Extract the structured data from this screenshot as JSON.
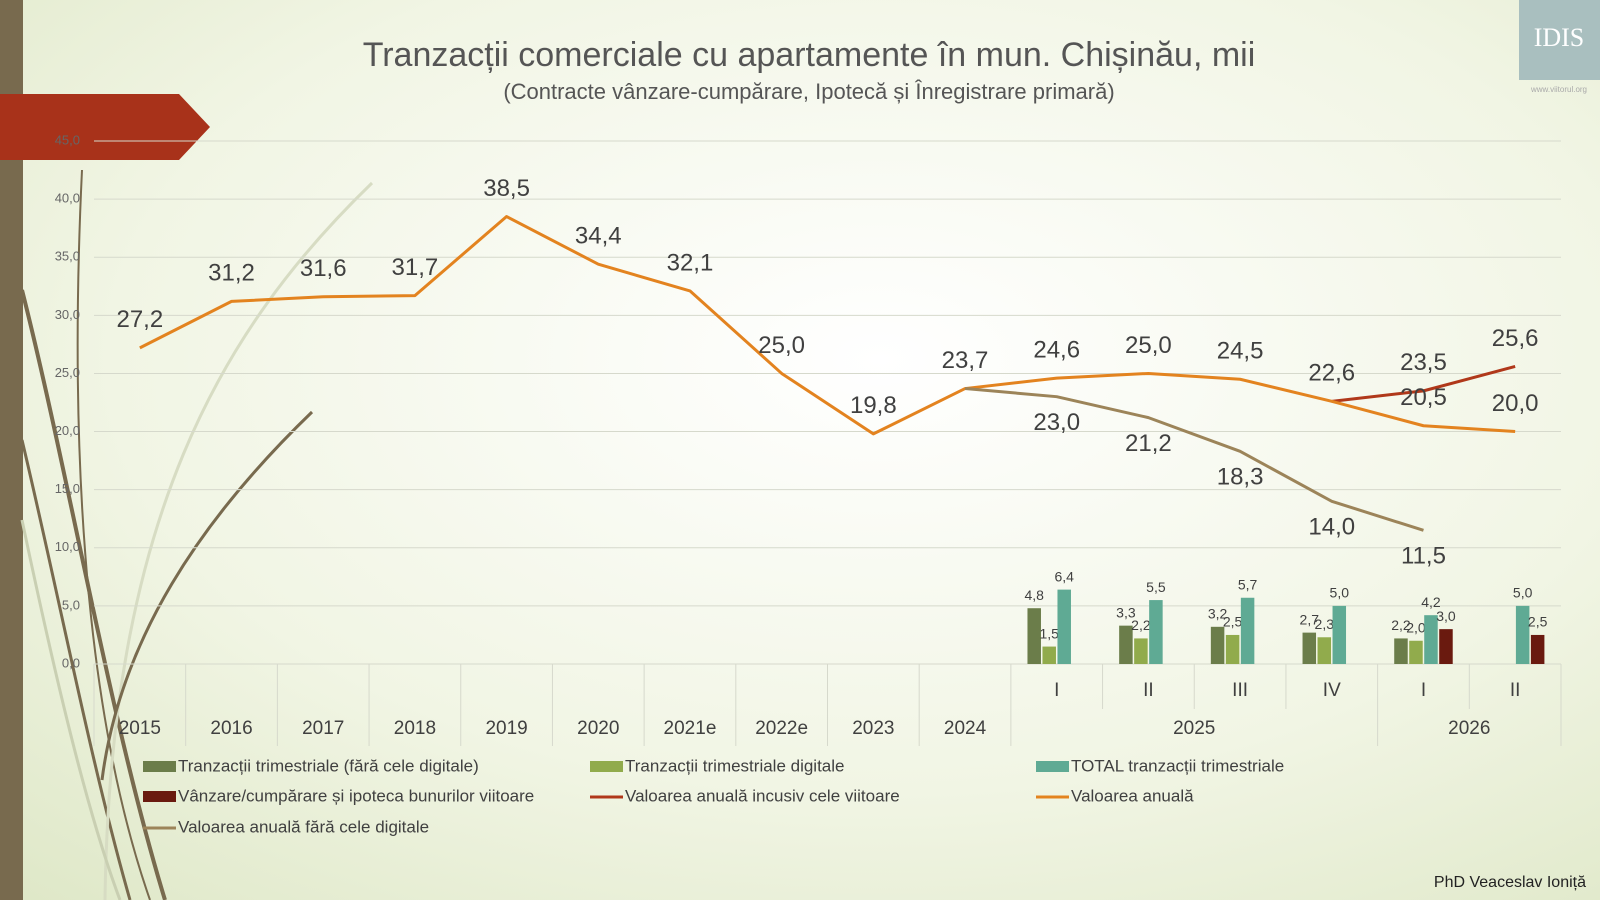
{
  "chart_data": {
    "type": "combo",
    "title": "Tranzacții comerciale cu apartamente în mun. Chișinău, mii",
    "subtitle": "(Contracte vânzare-cumpărare, Ipotecă și Înregistrare primară)",
    "categories": [
      "2015",
      "2016",
      "2017",
      "2018",
      "2019",
      "2020",
      "2021e",
      "2022e",
      "2023",
      "2024",
      "I",
      "II",
      "III",
      "IV",
      "I",
      "II"
    ],
    "x_groups": [
      {
        "label": "2025",
        "count": 4
      },
      {
        "label": "2026",
        "count": 2
      }
    ],
    "ylim": [
      0,
      45
    ],
    "yticks": [
      {
        "value": 0,
        "label": "0,0"
      },
      {
        "value": 5,
        "label": "5,0"
      },
      {
        "value": 10,
        "label": "10,0"
      },
      {
        "value": 15,
        "label": "15,0"
      },
      {
        "value": 20,
        "label": "20,0"
      },
      {
        "value": 25,
        "label": "25,0"
      },
      {
        "value": 30,
        "label": "30,0"
      },
      {
        "value": 35,
        "label": "35,0"
      },
      {
        "value": 40,
        "label": "40,0"
      },
      {
        "value": 45,
        "label": "45,0"
      }
    ],
    "grid": true,
    "series": [
      {
        "name": "Tranzacții trimestriale (fără cele digitale)",
        "type": "bar",
        "color": "#6b7d4a",
        "values": [
          null,
          null,
          null,
          null,
          null,
          null,
          null,
          null,
          null,
          null,
          4.8,
          3.3,
          3.2,
          2.7,
          2.2,
          null
        ],
        "value_labels": [
          null,
          null,
          null,
          null,
          null,
          null,
          null,
          null,
          null,
          null,
          "4,8",
          "3,3",
          "3,2",
          "2,7",
          "2,2",
          null
        ]
      },
      {
        "name": "Tranzacții trimestriale digitale",
        "type": "bar",
        "color": "#91ab4c",
        "values": [
          null,
          null,
          null,
          null,
          null,
          null,
          null,
          null,
          null,
          null,
          1.5,
          2.2,
          2.5,
          2.3,
          2.0,
          null
        ],
        "value_labels": [
          null,
          null,
          null,
          null,
          null,
          null,
          null,
          null,
          null,
          null,
          "1,5",
          "2,2",
          "2,5",
          "2,3",
          "2,0",
          null
        ]
      },
      {
        "name": "TOTAL tranzacții trimestriale",
        "type": "bar",
        "color": "#5faa94",
        "values": [
          null,
          null,
          null,
          null,
          null,
          null,
          null,
          null,
          null,
          null,
          6.4,
          5.5,
          5.7,
          5.0,
          4.2,
          5.0
        ],
        "value_labels": [
          null,
          null,
          null,
          null,
          null,
          null,
          null,
          null,
          null,
          null,
          "6,4",
          "5,5",
          "5,7",
          "5,0",
          "4,2",
          "5,0"
        ]
      },
      {
        "name": "Vânzare/cumpărare și ipoteca bunurilor viitoare",
        "type": "bar",
        "color": "#6a1a0f",
        "values": [
          null,
          null,
          null,
          null,
          null,
          null,
          null,
          null,
          null,
          null,
          null,
          null,
          null,
          null,
          3.0,
          2.5
        ],
        "value_labels": [
          null,
          null,
          null,
          null,
          null,
          null,
          null,
          null,
          null,
          null,
          null,
          null,
          null,
          null,
          "3,0",
          "2,5"
        ]
      },
      {
        "name": "Valoarea anuală incusiv cele viitoare",
        "type": "line",
        "color": "#b0381a",
        "label_position": "above",
        "values": [
          null,
          null,
          null,
          null,
          null,
          null,
          null,
          null,
          null,
          null,
          null,
          null,
          null,
          22.6,
          23.5,
          25.6
        ],
        "value_labels": [
          null,
          null,
          null,
          null,
          null,
          null,
          null,
          null,
          null,
          null,
          null,
          null,
          null,
          null,
          "23,5",
          "25,6"
        ]
      },
      {
        "name": "Valoarea anuală",
        "type": "line",
        "color": "#e3831f",
        "label_position": "above",
        "values": [
          27.2,
          31.2,
          31.6,
          31.7,
          38.5,
          34.4,
          32.1,
          25.0,
          19.8,
          23.7,
          24.6,
          25.0,
          24.5,
          22.6,
          20.5,
          20.0
        ],
        "value_labels": [
          "27,2",
          "31,2",
          "31,6",
          "31,7",
          "38,5",
          "34,4",
          "32,1",
          "25,0",
          "19,8",
          "23,7",
          "24,6",
          "25,0",
          "24,5",
          "22,6",
          "20,5",
          "20,0"
        ]
      },
      {
        "name": "Valoarea anuală fără cele digitale",
        "type": "line",
        "color": "#9c8459",
        "label_position": "below",
        "values": [
          null,
          null,
          null,
          null,
          null,
          null,
          null,
          null,
          null,
          23.7,
          23.0,
          21.2,
          18.3,
          14.0,
          11.5,
          null
        ],
        "value_labels": [
          null,
          null,
          null,
          null,
          null,
          null,
          null,
          null,
          null,
          null,
          "23,0",
          "21,2",
          "18,3",
          "14,0",
          "11,5",
          null
        ]
      }
    ]
  },
  "author": "PhD Veaceslav Ioniță",
  "logo": "IDIS",
  "logo_url": "www.viitorul.org"
}
